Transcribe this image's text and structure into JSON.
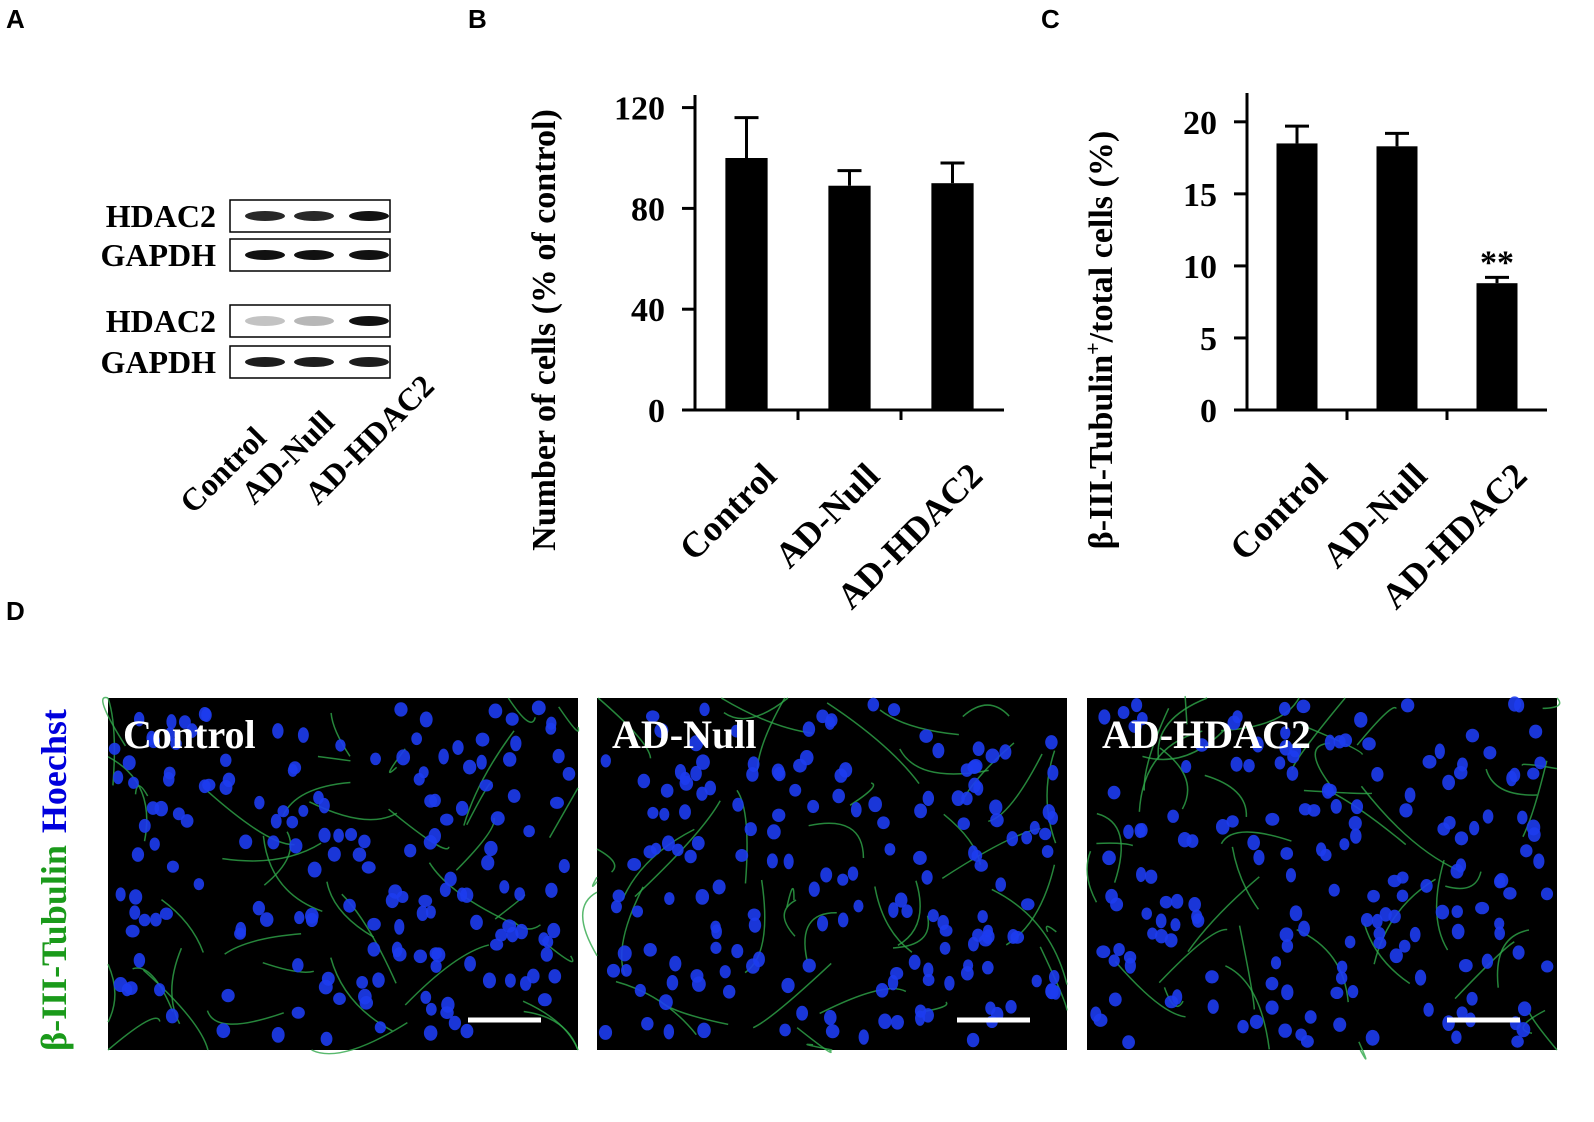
{
  "panel_labels": [
    "A",
    "B",
    "C",
    "D"
  ],
  "western_blot": {
    "rows": [
      "HDAC2",
      "GAPDH",
      "HDAC2",
      "GAPDH"
    ],
    "lanes": [
      "Control",
      "AD-Null",
      "AD-HDAC2"
    ]
  },
  "chart_data": [
    {
      "type": "bar",
      "y_label": "Number of cells (% of control)",
      "categories": [
        "Control",
        "AD-Null",
        "AD-HDAC2"
      ],
      "values": [
        100,
        89,
        90
      ],
      "errors": [
        16,
        6,
        8
      ],
      "color": "#000000",
      "ylim": [
        0,
        125
      ],
      "yticks": [
        0,
        40,
        80,
        120
      ]
    },
    {
      "type": "bar",
      "y_label": [
        "β-III-Tubulin",
        "+",
        "/total cells (%)"
      ],
      "categories": [
        "Control",
        "AD-Null",
        "AD-HDAC2"
      ],
      "values": [
        18.5,
        18.3,
        8.8
      ],
      "errors": [
        1.2,
        0.9,
        0.4
      ],
      "color": "#000000",
      "ylim": [
        0,
        22
      ],
      "yticks": [
        0,
        5,
        10,
        15,
        20
      ],
      "annotations": [
        {
          "text": "**",
          "category": "AD-HDAC2"
        }
      ]
    }
  ],
  "micrographs": {
    "stain_labels": [
      "β-III-Tubulin",
      "Hoechst"
    ],
    "stain_colors": [
      "#1a9a1a",
      "#0000dd"
    ],
    "panels": [
      "Control",
      "AD-Null",
      "AD-HDAC2"
    ]
  }
}
